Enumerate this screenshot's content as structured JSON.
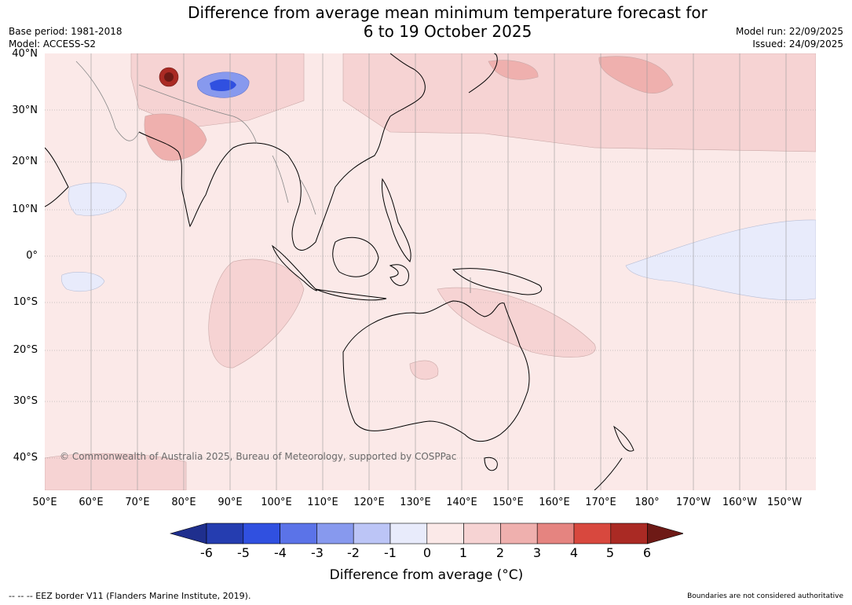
{
  "title": {
    "line1": "Difference from average mean minimum temperature forecast for",
    "line2": "6 to 19 October 2025"
  },
  "meta": {
    "base_period": "Base period: 1981-2018",
    "model": "Model: ACCESS-S2",
    "model_run": "Model run: 22/09/2025",
    "issued": "Issued: 24/09/2025"
  },
  "map": {
    "latitude_labels": [
      "40°N",
      "30°N",
      "20°N",
      "10°N",
      "0°",
      "10°S",
      "20°S",
      "30°S",
      "40°S"
    ],
    "longitude_labels": [
      "50°E",
      "60°E",
      "70°E",
      "80°E",
      "90°E",
      "100°E",
      "110°E",
      "120°E",
      "130°E",
      "140°E",
      "150°E",
      "160°E",
      "170°E",
      "180°",
      "170°W",
      "160°W",
      "150°W"
    ],
    "copyright": "© Commonwealth of Australia 2025, Bureau of Meteorology, supported by COSPPac",
    "land_color": "#fbe9e8",
    "coastline_color": "#000000"
  },
  "colorbar": {
    "tick_labels": [
      "-6",
      "-5",
      "-4",
      "-3",
      "-2",
      "-1",
      "0",
      "1",
      "2",
      "3",
      "4",
      "5",
      "6"
    ],
    "colors": [
      "#1f2f8e",
      "#253db0",
      "#3050e0",
      "#5b73e8",
      "#8799ee",
      "#bcc5f6",
      "#e8ebfb",
      "#fbe9e8",
      "#f6d3d3",
      "#efb0ae",
      "#e58480",
      "#d8483e",
      "#aa2a24",
      "#6e1a16"
    ],
    "label": "Difference from average (°C)"
  },
  "footer": {
    "eez_note": "--  --  -- EEZ border V11 (Flanders Marine Institute, 2019).",
    "disclaimer": "Boundaries are not considered authoritative"
  }
}
